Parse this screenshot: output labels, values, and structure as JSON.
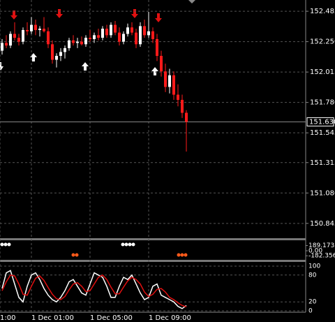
{
  "chart_data": [
    {
      "type": "candlestick",
      "open": [
        152.18,
        152.24,
        152.22,
        152.31,
        152.28,
        152.25,
        152.34,
        152.33,
        152.38,
        152.34,
        152.35,
        152.33,
        152.23,
        152.11,
        152.14,
        152.17,
        152.2,
        152.26,
        152.24,
        152.25,
        152.23,
        152.28,
        152.27,
        152.3,
        152.28,
        152.35,
        152.3,
        152.38,
        152.32,
        152.25,
        152.31,
        152.36,
        152.32,
        152.23,
        152.37,
        152.3,
        152.33,
        152.27,
        152.14,
        152.02,
        151.9,
        151.99,
        151.84,
        151.8,
        151.7
      ],
      "high": [
        152.27,
        152.3,
        152.33,
        152.4,
        152.31,
        152.36,
        152.4,
        152.44,
        152.42,
        152.37,
        152.44,
        152.36,
        152.26,
        152.16,
        152.2,
        152.22,
        152.28,
        152.3,
        152.28,
        152.29,
        152.3,
        152.34,
        152.32,
        152.35,
        152.37,
        152.38,
        152.4,
        152.41,
        152.36,
        152.33,
        152.39,
        152.4,
        152.35,
        152.4,
        152.42,
        152.48,
        152.36,
        152.31,
        152.18,
        152.08,
        152.04,
        152.02,
        151.92,
        151.84,
        151.72
      ],
      "low": [
        152.15,
        152.2,
        152.2,
        152.26,
        152.22,
        152.23,
        152.3,
        152.31,
        152.3,
        152.29,
        152.32,
        152.2,
        152.08,
        152.05,
        152.1,
        152.12,
        152.18,
        152.22,
        152.2,
        152.22,
        152.21,
        152.25,
        152.24,
        152.26,
        152.26,
        152.28,
        152.28,
        152.3,
        152.22,
        152.23,
        152.29,
        152.3,
        152.2,
        152.21,
        152.28,
        152.28,
        152.24,
        152.1,
        151.98,
        151.86,
        151.85,
        151.8,
        151.75,
        151.66,
        151.4
      ],
      "close": [
        152.24,
        152.22,
        152.31,
        152.28,
        152.25,
        152.34,
        152.33,
        152.38,
        152.34,
        152.35,
        152.33,
        152.23,
        152.11,
        152.14,
        152.17,
        152.2,
        152.26,
        152.24,
        152.25,
        152.23,
        152.28,
        152.27,
        152.3,
        152.28,
        152.35,
        152.3,
        152.38,
        152.32,
        152.25,
        152.31,
        152.36,
        152.32,
        152.23,
        152.37,
        152.3,
        152.33,
        152.27,
        152.14,
        152.02,
        151.9,
        151.99,
        151.84,
        151.8,
        151.7,
        151.63
      ],
      "colors": {
        "up": "#ffffff",
        "down": "#ff1a1a"
      },
      "ylim": [
        150.736,
        152.572
      ],
      "yticks": [
        152.485,
        {
          "value": 152.25,
          "label": "152.250"
        },
        152.015,
        {
          "value": 151.78,
          "label": "151.780"
        },
        151.545,
        151.315,
        {
          "value": 151.08,
          "label": "151.080"
        },
        150.845
      ],
      "current_price": {
        "value": 151.63,
        "label": "151.630"
      },
      "xlim": [
        -0.5,
        72.5
      ],
      "xticks": [
        {
          "value": -0.5,
          "label": "1:00"
        },
        {
          "value": 7,
          "label": "1 Dec 01:00"
        },
        {
          "value": 21,
          "label": "1 Dec 05:00"
        },
        {
          "value": 35,
          "label": "1 Dec 09:00"
        }
      ],
      "grid": true
    },
    {
      "type": "oscillator",
      "ylim": [
        -330,
        330
      ],
      "yticks": [
        189.1738,
        {
          "value": 0,
          "label": "0.00"
        },
        -182.356
      ]
    },
    {
      "type": "line",
      "ylim": [
        0,
        100
      ],
      "yticks": [
        100,
        80,
        20,
        0
      ],
      "series": [
        {
          "color": "#ffffff",
          "values": [
            50,
            85,
            90,
            60,
            30,
            20,
            55,
            80,
            85,
            70,
            50,
            35,
            25,
            20,
            30,
            45,
            65,
            70,
            55,
            40,
            35,
            60,
            85,
            80,
            75,
            55,
            30,
            30,
            55,
            75,
            70,
            80,
            60,
            40,
            25,
            30,
            55,
            60,
            35,
            30,
            25,
            20,
            10,
            5,
            12
          ]
        },
        {
          "color": "#e01010",
          "values": [
            45,
            65,
            80,
            78,
            60,
            37,
            35,
            55,
            73,
            78,
            68,
            52,
            37,
            27,
            25,
            32,
            47,
            60,
            63,
            55,
            43,
            45,
            60,
            75,
            80,
            70,
            53,
            38,
            38,
            53,
            67,
            75,
            70,
            60,
            42,
            32,
            37,
            48,
            50,
            42,
            30,
            25,
            18,
            12,
            9
          ]
        }
      ]
    }
  ]
}
